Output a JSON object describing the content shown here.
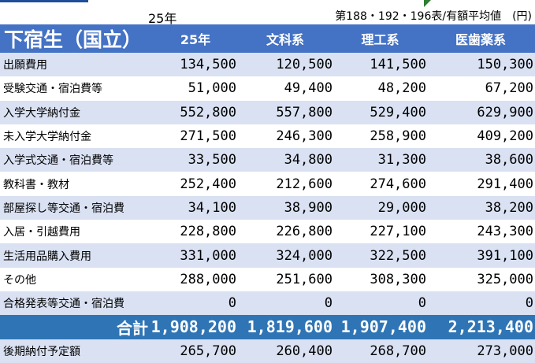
{
  "top": {
    "year": "25年",
    "source": "第188・192・196表/有額平均値　(円)"
  },
  "header": {
    "title": "下宿生（国立）",
    "columns": [
      "25年",
      "文科系",
      "理工系",
      "医歯薬系"
    ]
  },
  "rows": [
    {
      "label": "出願費用",
      "values": [
        "134,500",
        "120,500",
        "141,500",
        "150,300"
      ]
    },
    {
      "label": "受験交通・宿泊費等",
      "values": [
        "51,000",
        "49,400",
        "48,200",
        "67,200"
      ]
    },
    {
      "label": "入学大学納付金",
      "values": [
        "552,800",
        "557,800",
        "529,400",
        "629,900"
      ]
    },
    {
      "label": "未入学大学納付金",
      "values": [
        "271,500",
        "246,300",
        "258,900",
        "409,200"
      ]
    },
    {
      "label": "入学式交通・宿泊費等",
      "values": [
        "33,500",
        "34,800",
        "31,300",
        "38,600"
      ]
    },
    {
      "label": "教科書・教材",
      "values": [
        "252,400",
        "212,600",
        "274,600",
        "291,400"
      ]
    },
    {
      "label": "部屋探し等交通・宿泊費",
      "values": [
        "34,100",
        "38,900",
        "29,000",
        "38,200"
      ]
    },
    {
      "label": "入居・引越費用",
      "values": [
        "228,800",
        "226,800",
        "227,100",
        "243,300"
      ]
    },
    {
      "label": "生活用品購入費用",
      "values": [
        "331,000",
        "324,000",
        "322,500",
        "391,100"
      ]
    },
    {
      "label": "その他",
      "values": [
        "288,000",
        "251,600",
        "308,300",
        "325,000"
      ]
    },
    {
      "label": "合格発表等交通・宿泊費",
      "values": [
        "0",
        "0",
        "0",
        "0"
      ]
    }
  ],
  "total": {
    "label": "合計",
    "values": [
      "1,908,200",
      "1,819,600",
      "1,907,400",
      "2,213,400"
    ]
  },
  "later": {
    "label": "後期納付予定額",
    "values": [
      "265,700",
      "260,400",
      "268,700",
      "273,000"
    ]
  },
  "colors": {
    "header_bg": "#4472c4",
    "row_shade": "#d9e1f2",
    "total_bg": "#2f75b5",
    "corner_marker": "#2e7d32"
  }
}
